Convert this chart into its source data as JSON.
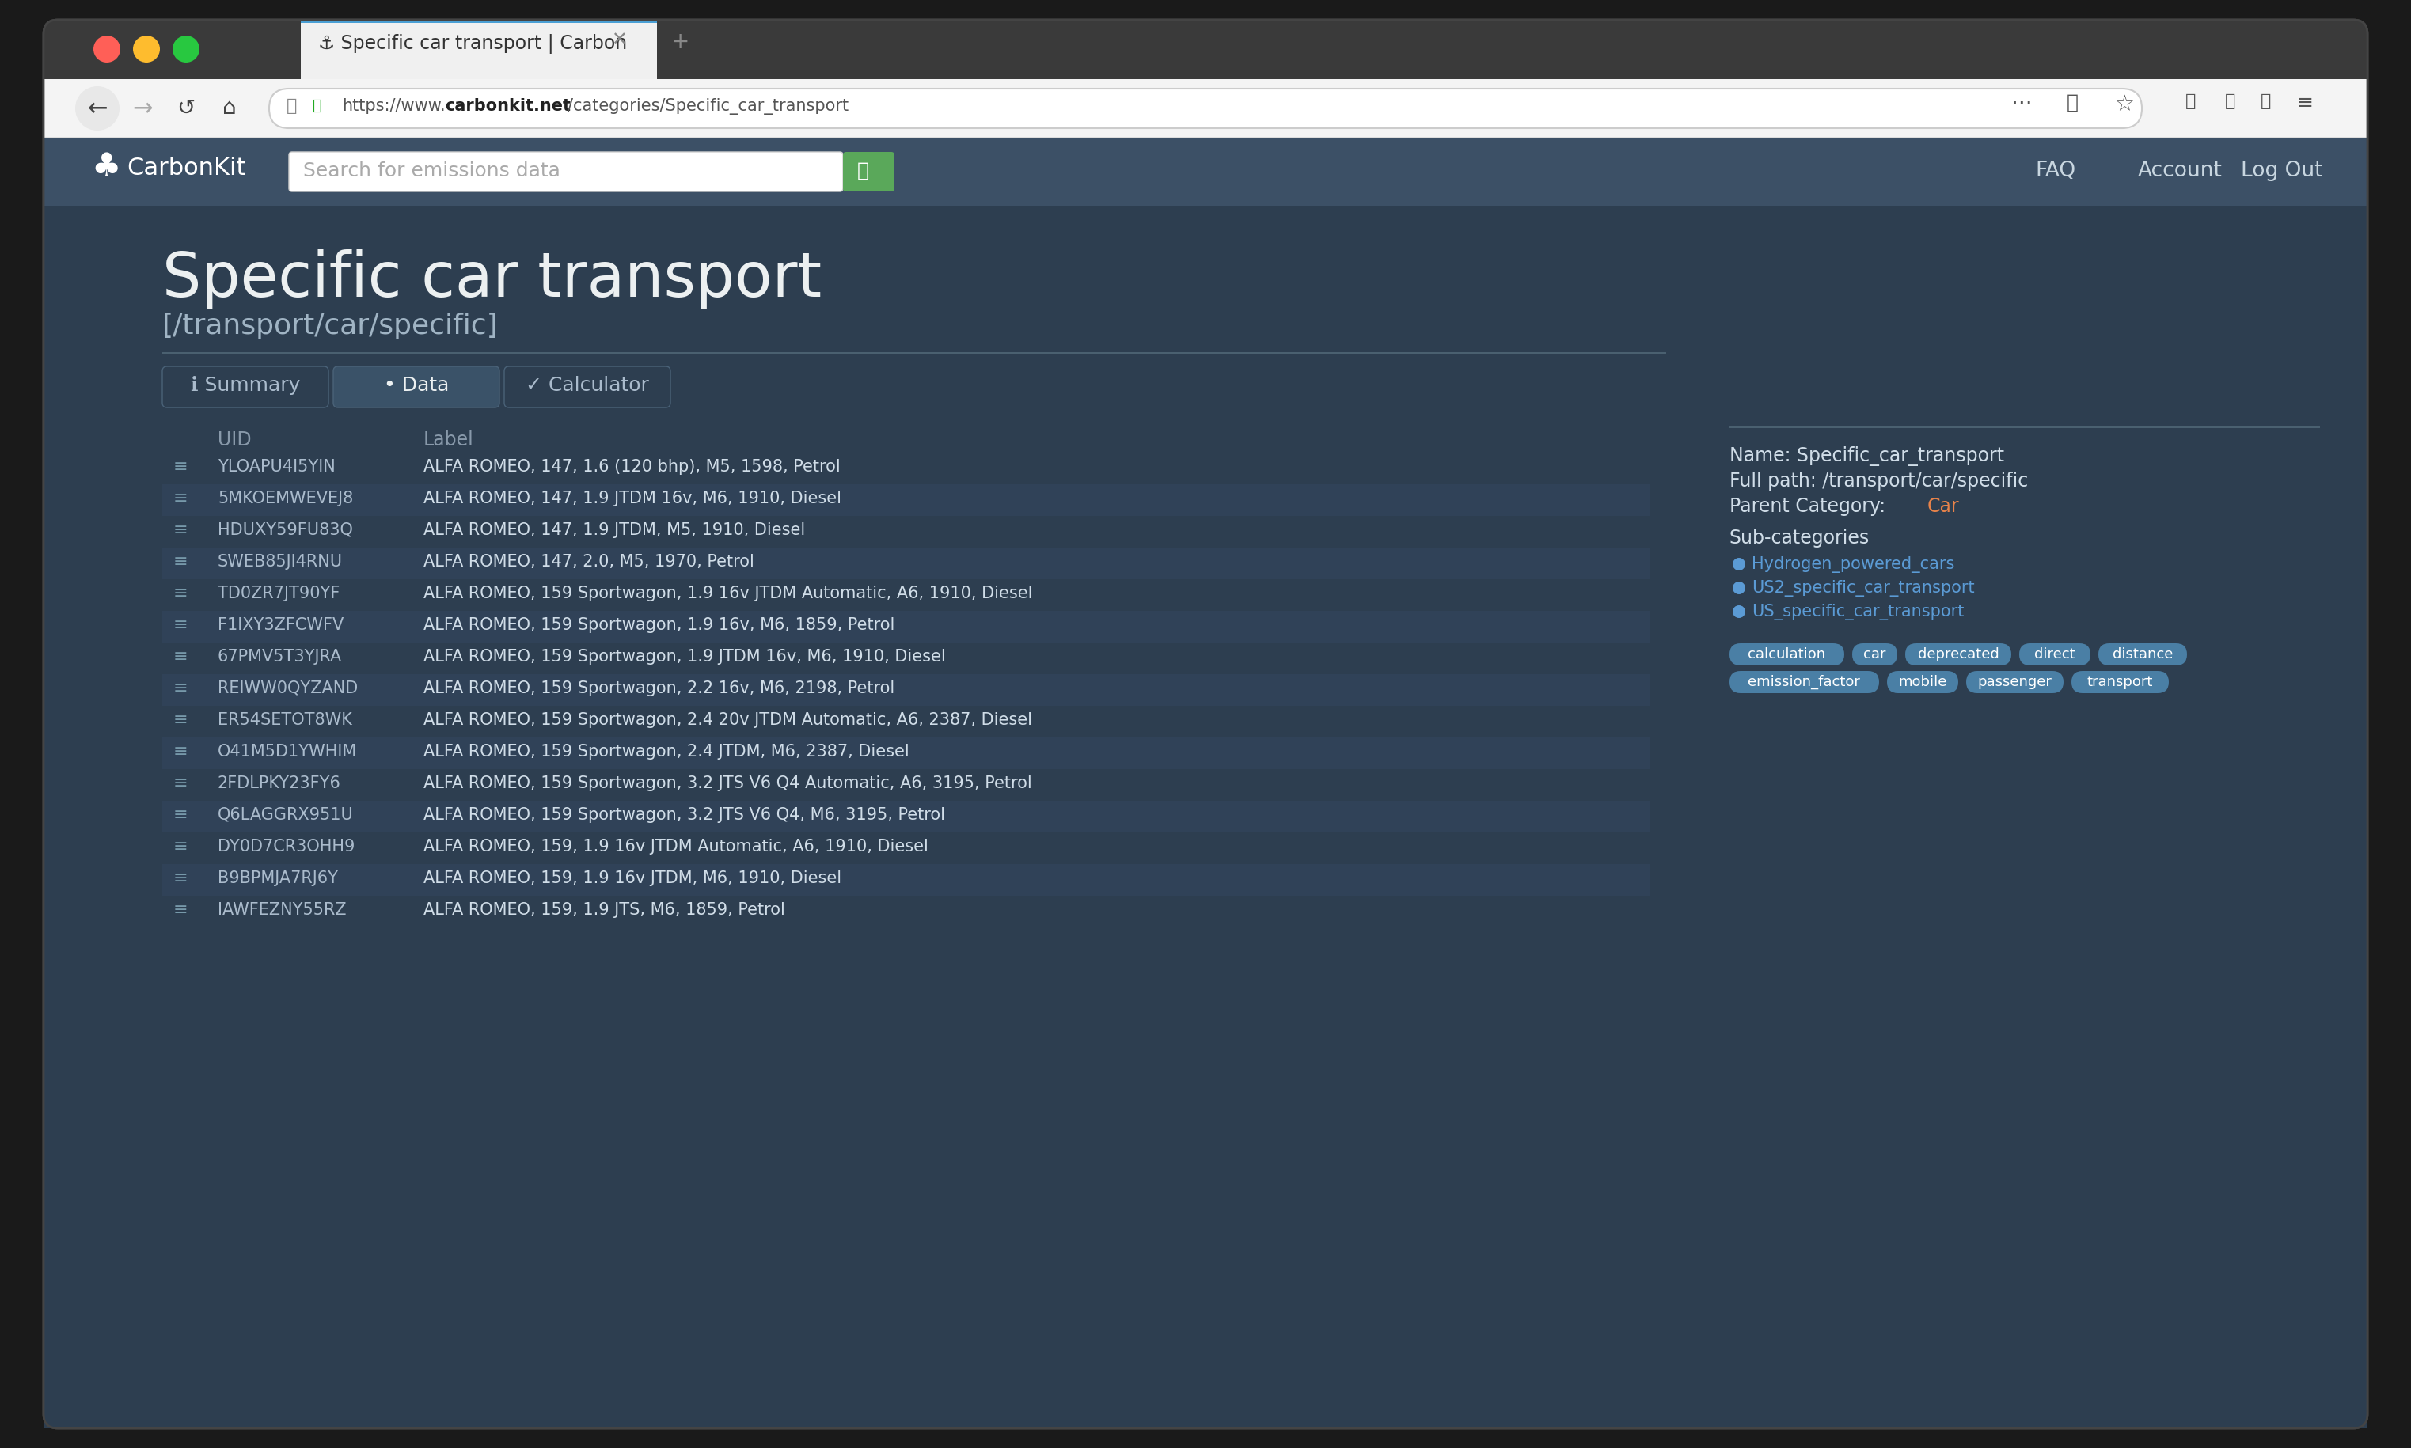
{
  "url": "https://www.carbonkit.net/categories/Specific_car_transport",
  "site_title": "Specific car transport",
  "site_subtitle": "[/transport/car/specific]",
  "nav_links": [
    "FAQ",
    "Account",
    "Log Out"
  ],
  "tabs": [
    "ℹ Summary",
    "• Data",
    "✓ Calculator"
  ],
  "active_tab": 1,
  "col_uid": "UID",
  "col_label": "Label",
  "rows": [
    [
      "YLOAPU4I5YIN",
      "ALFA ROMEO, 147, 1.6 (120 bhp), M5, 1598, Petrol"
    ],
    [
      "5MKOEMWEVEJ8",
      "ALFA ROMEO, 147, 1.9 JTDM 16v, M6, 1910, Diesel"
    ],
    [
      "HDUXY59FU83Q",
      "ALFA ROMEO, 147, 1.9 JTDM, M5, 1910, Diesel"
    ],
    [
      "SWEB85JI4RNU",
      "ALFA ROMEO, 147, 2.0, M5, 1970, Petrol"
    ],
    [
      "TD0ZR7JT90YF",
      "ALFA ROMEO, 159 Sportwagon, 1.9 16v JTDM Automatic, A6, 1910, Diesel"
    ],
    [
      "F1IXY3ZFCWFV",
      "ALFA ROMEO, 159 Sportwagon, 1.9 16v, M6, 1859, Petrol"
    ],
    [
      "67PMV5T3YJRA",
      "ALFA ROMEO, 159 Sportwagon, 1.9 JTDM 16v, M6, 1910, Diesel"
    ],
    [
      "REIWW0QYZAND",
      "ALFA ROMEO, 159 Sportwagon, 2.2 16v, M6, 2198, Petrol"
    ],
    [
      "ER54SETOT8WK",
      "ALFA ROMEO, 159 Sportwagon, 2.4 20v JTDM Automatic, A6, 2387, Diesel"
    ],
    [
      "O41M5D1YWHIM",
      "ALFA ROMEO, 159 Sportwagon, 2.4 JTDM, M6, 2387, Diesel"
    ],
    [
      "2FDLPKY23FY6",
      "ALFA ROMEO, 159 Sportwagon, 3.2 JTS V6 Q4 Automatic, A6, 3195, Petrol"
    ],
    [
      "Q6LAGGRX951U",
      "ALFA ROMEO, 159 Sportwagon, 3.2 JTS V6 Q4, M6, 3195, Petrol"
    ],
    [
      "DY0D7CR3OHH9",
      "ALFA ROMEO, 159, 1.9 16v JTDM Automatic, A6, 1910, Diesel"
    ],
    [
      "B9BPMJA7RJ6Y",
      "ALFA ROMEO, 159, 1.9 16v JTDM, M6, 1910, Diesel"
    ],
    [
      "IAWFEZNY55RZ",
      "ALFA ROMEO, 159, 1.9 JTS, M6, 1859, Petrol"
    ]
  ],
  "sidebar_name_label": "Name:",
  "sidebar_name_value": "Specific_car_transport",
  "sidebar_path_label": "Full path:",
  "sidebar_path_value": "/transport/car/specific",
  "sidebar_parent_label": "Parent Category:",
  "sidebar_parent_value": "Car",
  "sidebar_parent_color": "#e8834a",
  "sidebar_subcat_label": "Sub-categories",
  "sidebar_subcats": [
    "Hydrogen_powered_cars",
    "US2_specific_car_transport",
    "US_specific_car_transport"
  ],
  "sidebar_subcat_color": "#5b9bd5",
  "tags": [
    "calculation",
    "car",
    "deprecated",
    "direct",
    "distance",
    "emission_factor",
    "mobile",
    "passenger",
    "transport"
  ],
  "tag_bg": "#4a7fa5",
  "outer_bg": "#1a1a1a",
  "window_frame_color": "#2b2b2b",
  "title_bar_color": "#3a3a3a",
  "tab_bar_color": "#3a3a3a",
  "nav_bar_color": "#f4f4f4",
  "active_tab_color": "#f0f0f0",
  "page_dark_bg": "#2d3e50",
  "site_header_color": "#3c5066",
  "page_bg_color": "#2d3e50",
  "traffic_red": "#ff5f57",
  "traffic_yellow": "#febc2e",
  "traffic_green": "#28c840",
  "url_bar_color": "#ffffff",
  "search_box_color": "#ffffff",
  "search_btn_color": "#5aa85a",
  "tab_active_text": "#ecf0f1",
  "tab_inactive_text": "#aaaaaa",
  "row_text_uid": "#aabbcc",
  "row_text_label": "#d0dde8",
  "row_icon_color": "#7799aa",
  "header_col_color": "#8899aa",
  "sidebar_text_color": "#d0dde8",
  "title_text_color": "#ecf0f1",
  "subtitle_text_color": "#a0b4c4"
}
